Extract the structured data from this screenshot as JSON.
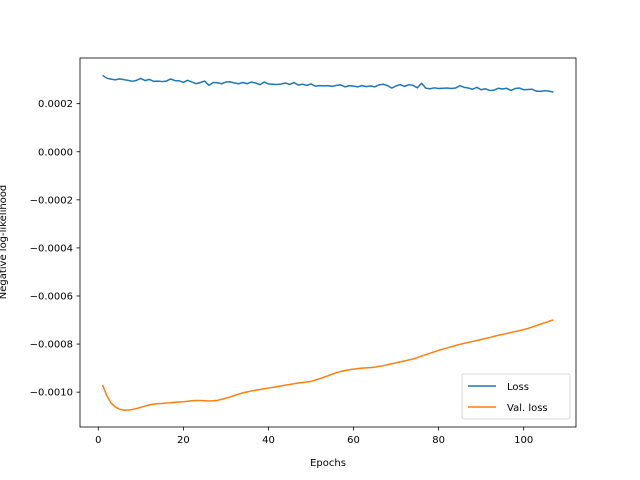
{
  "chart_data": {
    "type": "line",
    "xlabel": "Epochs",
    "ylabel": "Negative log-likelihood",
    "x": [
      1,
      2,
      3,
      4,
      5,
      6,
      7,
      8,
      9,
      10,
      11,
      12,
      13,
      14,
      15,
      16,
      17,
      18,
      19,
      20,
      21,
      22,
      23,
      24,
      25,
      26,
      27,
      28,
      29,
      30,
      31,
      32,
      33,
      34,
      35,
      36,
      37,
      38,
      39,
      40,
      41,
      42,
      43,
      44,
      45,
      46,
      47,
      48,
      49,
      50,
      51,
      52,
      53,
      54,
      55,
      56,
      57,
      58,
      59,
      60,
      61,
      62,
      63,
      64,
      65,
      66,
      67,
      68,
      69,
      70,
      71,
      72,
      73,
      74,
      75,
      76,
      77,
      78,
      79,
      80,
      81,
      82,
      83,
      84,
      85,
      86,
      87,
      88,
      89,
      90,
      91,
      92,
      93,
      94,
      95,
      96,
      97,
      98,
      99,
      100,
      101,
      102,
      103,
      104,
      105,
      106,
      107
    ],
    "series": [
      {
        "name": "Loss",
        "color": "#1f77b4",
        "values": [
          0.000318,
          0.000306,
          0.000302,
          0.000299,
          0.000303,
          0.0003,
          0.000297,
          0.000293,
          0.000297,
          0.000305,
          0.000296,
          0.000301,
          0.000293,
          0.000294,
          0.000292,
          0.000294,
          0.000303,
          0.000296,
          0.000295,
          0.000289,
          0.000297,
          0.00029,
          0.000283,
          0.000288,
          0.000294,
          0.000276,
          0.000288,
          0.000287,
          0.000283,
          0.00029,
          0.000291,
          0.000286,
          0.000283,
          0.000288,
          0.000283,
          0.00029,
          0.000286,
          0.000279,
          0.00029,
          0.000282,
          0.000281,
          0.00028,
          0.000282,
          0.000286,
          0.00028,
          0.000288,
          0.000277,
          0.000281,
          0.000276,
          0.000282,
          0.000273,
          0.000275,
          0.000274,
          0.000275,
          0.000272,
          0.000276,
          0.000278,
          0.00027,
          0.000275,
          0.000273,
          0.00027,
          0.000275,
          0.000271,
          0.000274,
          0.00027,
          0.000278,
          0.000281,
          0.000275,
          0.000265,
          0.000274,
          0.000279,
          0.000272,
          0.000279,
          0.000276,
          0.000266,
          0.000285,
          0.000264,
          0.000262,
          0.000266,
          0.000263,
          0.000264,
          0.000265,
          0.000263,
          0.000265,
          0.000275,
          0.000268,
          0.000265,
          0.00026,
          0.000268,
          0.000258,
          0.000262,
          0.000255,
          0.000256,
          0.000264,
          0.000261,
          0.000264,
          0.000255,
          0.000263,
          0.000265,
          0.000258,
          0.000259,
          0.00026,
          0.000252,
          0.000251,
          0.000254,
          0.000252,
          0.000248
        ]
      },
      {
        "name": "Val. loss",
        "color": "#ff7f0e",
        "values": [
          -0.00097,
          -0.001015,
          -0.001045,
          -0.001062,
          -0.001071,
          -0.001075,
          -0.001075,
          -0.001072,
          -0.001068,
          -0.001063,
          -0.001058,
          -0.001053,
          -0.00105,
          -0.001048,
          -0.001047,
          -0.001045,
          -0.001044,
          -0.001042,
          -0.001041,
          -0.00104,
          -0.001038,
          -0.001036,
          -0.001035,
          -0.001035,
          -0.001036,
          -0.001037,
          -0.001036,
          -0.001034,
          -0.00103,
          -0.001025,
          -0.00102,
          -0.001014,
          -0.001008,
          -0.001003,
          -0.000999,
          -0.000995,
          -0.000992,
          -0.000989,
          -0.000986,
          -0.000983,
          -0.00098,
          -0.000977,
          -0.000974,
          -0.000971,
          -0.000968,
          -0.000965,
          -0.000962,
          -0.00096,
          -0.000958,
          -0.000955,
          -0.00095,
          -0.000944,
          -0.000938,
          -0.000932,
          -0.000925,
          -0.000919,
          -0.000914,
          -0.00091,
          -0.000907,
          -0.000904,
          -0.000902,
          -0.0009,
          -0.000899,
          -0.000898,
          -0.000896,
          -0.000893,
          -0.00089,
          -0.000886,
          -0.000882,
          -0.000878,
          -0.000874,
          -0.00087,
          -0.000866,
          -0.000862,
          -0.000856,
          -0.00085,
          -0.000844,
          -0.000838,
          -0.000832,
          -0.000826,
          -0.000821,
          -0.000816,
          -0.000811,
          -0.000806,
          -0.000801,
          -0.000797,
          -0.000793,
          -0.000789,
          -0.000785,
          -0.000781,
          -0.000777,
          -0.000773,
          -0.000768,
          -0.000764,
          -0.00076,
          -0.000756,
          -0.000752,
          -0.000748,
          -0.000744,
          -0.00074,
          -0.000735,
          -0.000729,
          -0.000723,
          -0.000717,
          -0.000711,
          -0.000705,
          -0.000699
        ]
      }
    ],
    "xlim": [
      -4.3,
      112.3
    ],
    "ylim": [
      -0.001145,
      0.00039
    ],
    "xticks": [
      0,
      20,
      40,
      60,
      80,
      100
    ],
    "yticks": [
      {
        "value": -0.001,
        "label": "−0.0010"
      },
      {
        "value": -0.0008,
        "label": "−0.0008"
      },
      {
        "value": -0.0006,
        "label": "−0.0006"
      },
      {
        "value": -0.0004,
        "label": "−0.0004"
      },
      {
        "value": -0.0002,
        "label": "−0.0002"
      },
      {
        "value": 0,
        "label": "0.0000"
      },
      {
        "value": 0.0002,
        "label": "0.0002"
      }
    ],
    "legend": "lower right",
    "grid": false
  }
}
